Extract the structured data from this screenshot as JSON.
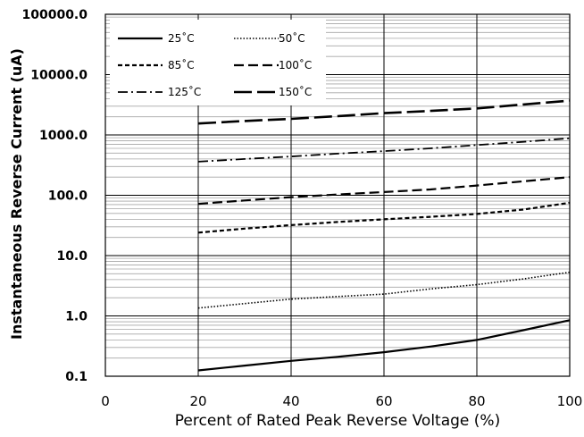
{
  "chart_data": {
    "type": "line",
    "title": "",
    "xlabel": "Percent of  Rated Peak Reverse Voltage (%)",
    "ylabel": "Instantaneous Reverse Current (uA)",
    "xlim": [
      0,
      100
    ],
    "ylim": [
      0.1,
      100000
    ],
    "y_scale": "log",
    "grid": true,
    "legend_position": "top-left",
    "x_ticks": [
      0,
      20,
      40,
      60,
      80,
      100
    ],
    "y_ticks": [
      0.1,
      1,
      10,
      100,
      1000,
      10000,
      100000
    ],
    "x_tick_labels": [
      "0",
      "20",
      "40",
      "60",
      "80",
      "100"
    ],
    "y_tick_labels": [
      "0.1",
      "1.0",
      "10.0",
      "100.0",
      "1000.0",
      "10000.0",
      "100000.0"
    ],
    "x": [
      20,
      30,
      40,
      50,
      60,
      70,
      80,
      90,
      100
    ],
    "series": [
      {
        "name": "25˚C",
        "style": "solid",
        "values": [
          0.125,
          0.15,
          0.18,
          0.21,
          0.25,
          0.31,
          0.4,
          0.58,
          0.85
        ]
      },
      {
        "name": "50˚C",
        "style": "dotted",
        "values": [
          1.35,
          1.6,
          1.9,
          2.1,
          2.3,
          2.8,
          3.3,
          4.1,
          5.3
        ]
      },
      {
        "name": "85˚C",
        "style": "short-dash",
        "values": [
          24,
          28,
          32,
          36,
          40,
          44,
          49,
          58,
          75
        ]
      },
      {
        "name": "100˚C",
        "style": "dash",
        "values": [
          72,
          82,
          93,
          103,
          113,
          125,
          145,
          170,
          200
        ]
      },
      {
        "name": "125˚C",
        "style": "dash-dot",
        "values": [
          360,
          400,
          440,
          490,
          540,
          600,
          680,
          770,
          880
        ]
      },
      {
        "name": "150˚C",
        "style": "long-dash",
        "values": [
          1550,
          1700,
          1850,
          2050,
          2300,
          2500,
          2750,
          3200,
          3700
        ]
      }
    ]
  }
}
